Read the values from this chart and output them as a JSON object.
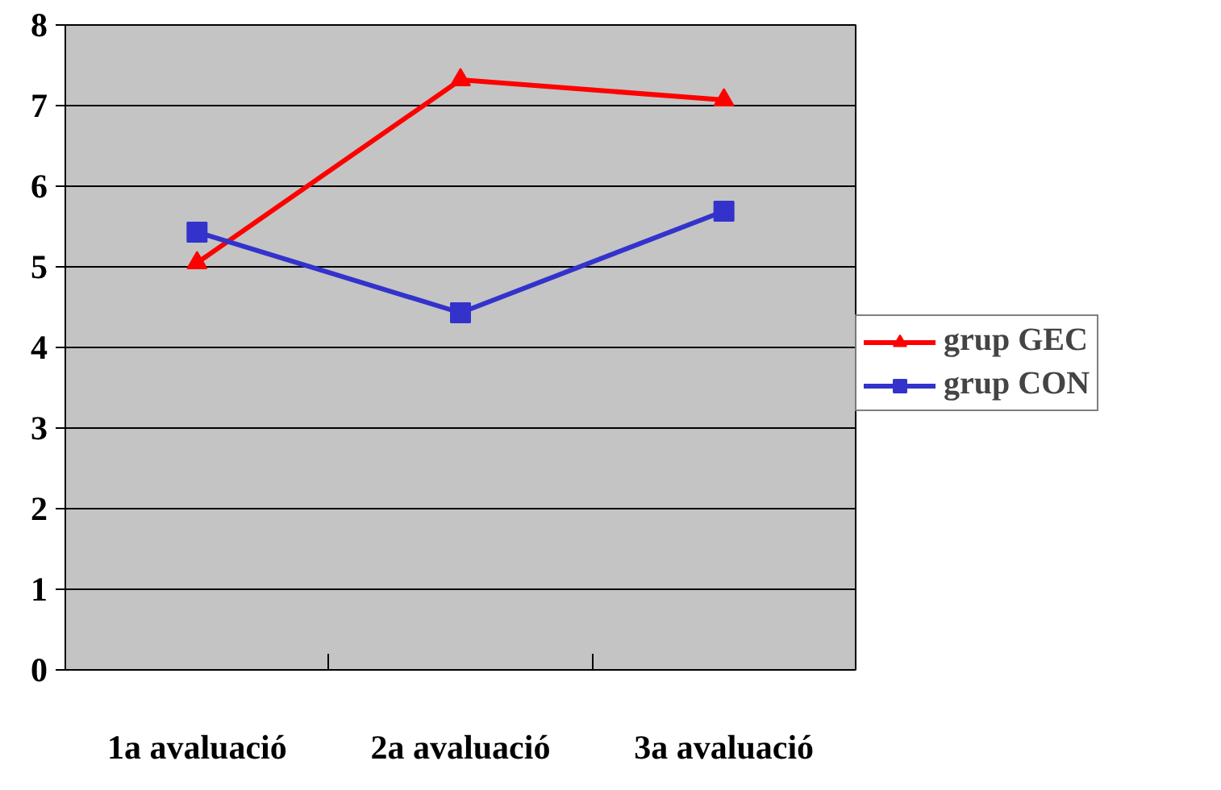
{
  "chart_data": {
    "type": "line",
    "categories": [
      "1a avaluació",
      "2a avaluació",
      "3a avaluació"
    ],
    "series": [
      {
        "name": "grup GEC",
        "color": "#ff0000",
        "marker": "triangle",
        "values": [
          5.05,
          7.32,
          7.07
        ]
      },
      {
        "name": "grup CON",
        "color": "#3333cc",
        "marker": "square",
        "values": [
          5.43,
          4.43,
          5.69
        ]
      }
    ],
    "ylim": [
      0,
      8
    ],
    "yticks": [
      0,
      1,
      2,
      3,
      4,
      5,
      6,
      7,
      8
    ],
    "grid": "y",
    "legend": "right"
  }
}
